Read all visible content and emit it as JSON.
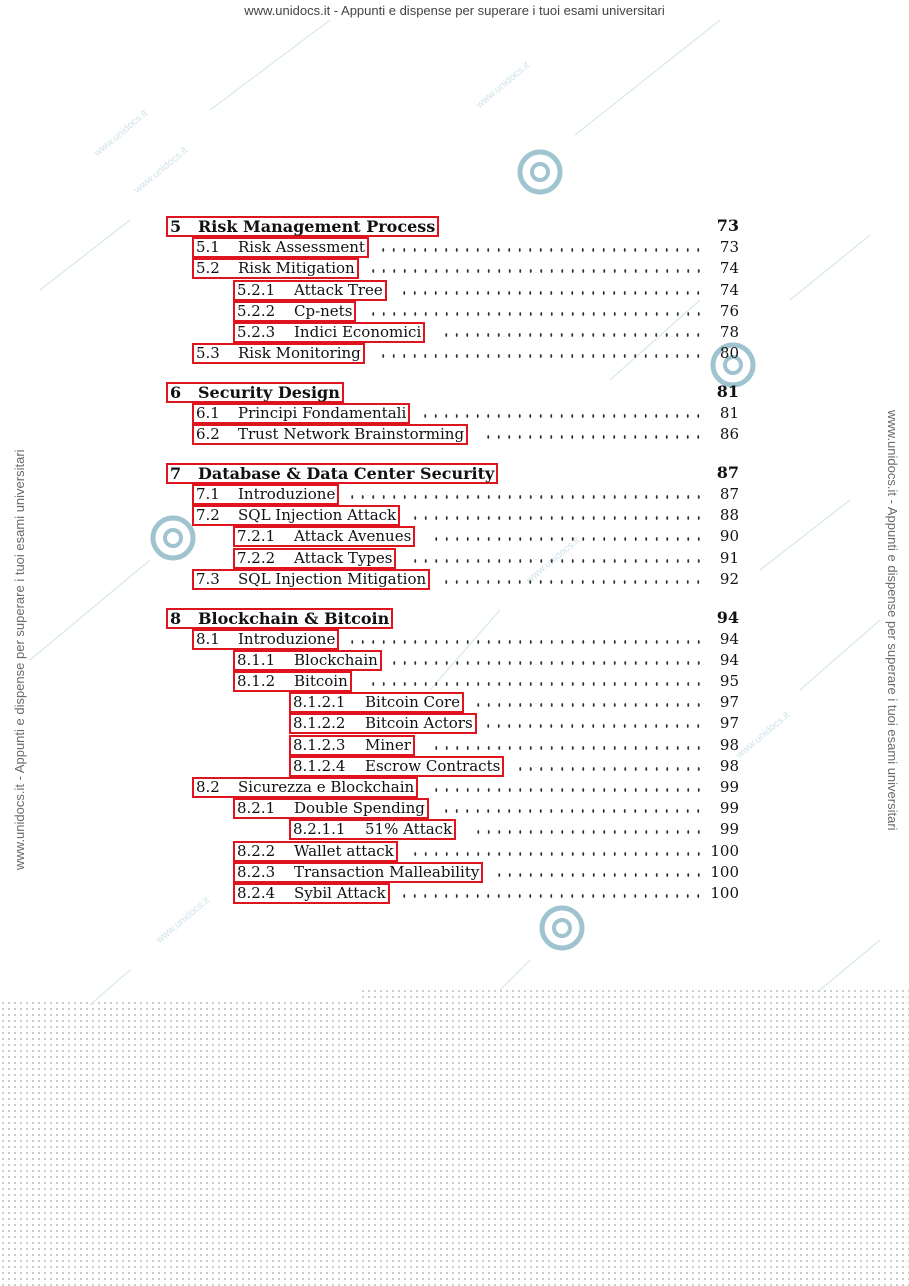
{
  "header": {
    "banner": "www.unidocs.it - Appunti e dispense per superare i tuoi esami universitari"
  },
  "watermark": {
    "side_text": "www.unidocs.it - Appunti e dispense per superare i tuoi esami universitari",
    "small_text": "www.unidocs.it",
    "logo_icon": "unidocs-logo-icon",
    "color": "#9fc4cf"
  },
  "toc": {
    "border_color": "#e0141e",
    "entries": [
      {
        "level": 0,
        "num": "5",
        "title": "Risk Management Process",
        "page": "73"
      },
      {
        "level": 1,
        "num": "5.1",
        "title": "Risk Assessment",
        "page": "73"
      },
      {
        "level": 1,
        "num": "5.2",
        "title": "Risk Mitigation",
        "page": "74"
      },
      {
        "level": 2,
        "num": "5.2.1",
        "title": "Attack Tree",
        "page": "74"
      },
      {
        "level": 2,
        "num": "5.2.2",
        "title": "Cp-nets",
        "page": "76"
      },
      {
        "level": 2,
        "num": "5.2.3",
        "title": "Indici Economici",
        "page": "78"
      },
      {
        "level": 1,
        "num": "5.3",
        "title": "Risk Monitoring",
        "page": "80"
      },
      {
        "level": 0,
        "num": "6",
        "title": "Security Design",
        "page": "81"
      },
      {
        "level": 1,
        "num": "6.1",
        "title": "Principi Fondamentali",
        "page": "81"
      },
      {
        "level": 1,
        "num": "6.2",
        "title": "Trust Network Brainstorming",
        "page": "86"
      },
      {
        "level": 0,
        "num": "7",
        "title": "Database & Data Center Security",
        "page": "87"
      },
      {
        "level": 1,
        "num": "7.1",
        "title": "Introduzione",
        "page": "87"
      },
      {
        "level": 1,
        "num": "7.2",
        "title": "SQL Injection Attack",
        "page": "88"
      },
      {
        "level": 2,
        "num": "7.2.1",
        "title": "Attack Avenues",
        "page": "90"
      },
      {
        "level": 2,
        "num": "7.2.2",
        "title": "Attack Types",
        "page": "91"
      },
      {
        "level": 1,
        "num": "7.3",
        "title": "SQL Injection Mitigation",
        "page": "92"
      },
      {
        "level": 0,
        "num": "8",
        "title": "Blockchain & Bitcoin",
        "page": "94"
      },
      {
        "level": 1,
        "num": "8.1",
        "title": "Introduzione",
        "page": "94"
      },
      {
        "level": 2,
        "num": "8.1.1",
        "title": "Blockchain",
        "page": "94"
      },
      {
        "level": 2,
        "num": "8.1.2",
        "title": "Bitcoin",
        "page": "95"
      },
      {
        "level": 3,
        "num": "8.1.2.1",
        "title": "Bitcoin Core",
        "page": "97"
      },
      {
        "level": 3,
        "num": "8.1.2.2",
        "title": "Bitcoin Actors",
        "page": "97"
      },
      {
        "level": 3,
        "num": "8.1.2.3",
        "title": "Miner",
        "page": "98"
      },
      {
        "level": 3,
        "num": "8.1.2.4",
        "title": "Escrow Contracts",
        "page": "98"
      },
      {
        "level": 1,
        "num": "8.2",
        "title": "Sicurezza e Blockchain",
        "page": "99"
      },
      {
        "level": 2,
        "num": "8.2.1",
        "title": "Double Spending",
        "page": "99"
      },
      {
        "level": 3,
        "num": "8.2.1.1",
        "title": "51% Attack",
        "page": "99"
      },
      {
        "level": 2,
        "num": "8.2.2",
        "title": "Wallet attack",
        "page": "100"
      },
      {
        "level": 2,
        "num": "8.2.3",
        "title": "Transaction Malleability",
        "page": "100"
      },
      {
        "level": 2,
        "num": "8.2.4",
        "title": "Sybil Attack",
        "page": "100"
      }
    ]
  }
}
